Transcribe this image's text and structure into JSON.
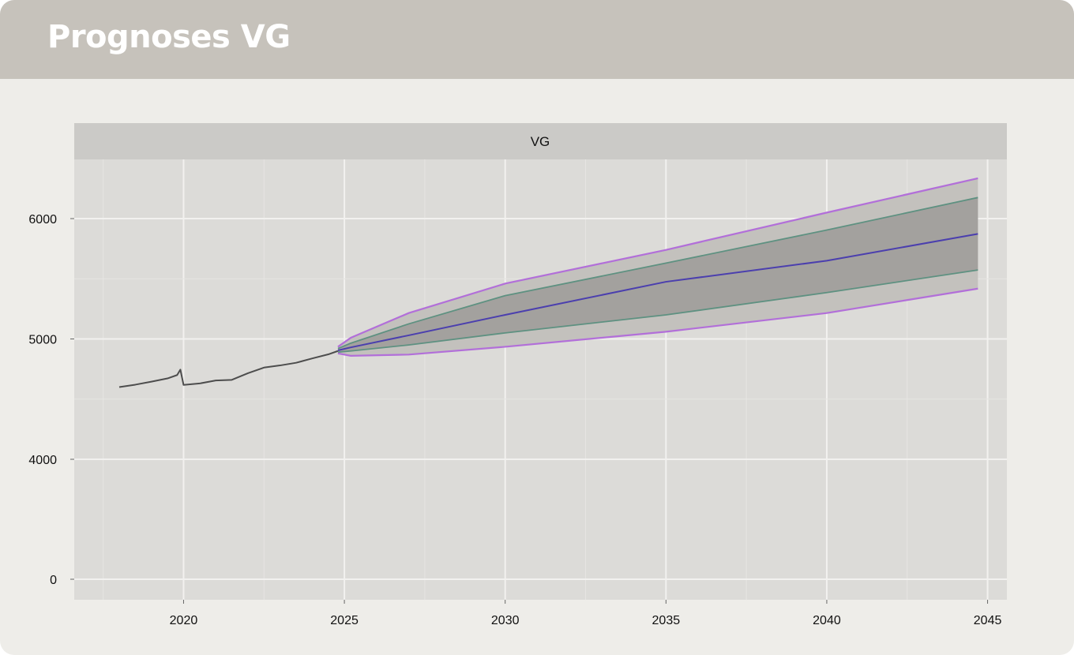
{
  "header": {
    "title": "Prognoses VG"
  },
  "chart_data": {
    "type": "line",
    "panel_label": "VG",
    "title": "",
    "xlabel": "",
    "ylabel": "",
    "xlim": [
      2016.6,
      2045.6
    ],
    "ylim": [
      -200,
      6500
    ],
    "x_ticks": [
      2020,
      2025,
      2030,
      2035,
      2040,
      2045
    ],
    "y_ticks": [
      0,
      4000,
      5000,
      6000
    ],
    "y_axis_break": "between 0 and 4000",
    "grid": true,
    "history": {
      "x": [
        2018.0,
        2018.5,
        2019.0,
        2019.5,
        2019.8,
        2019.9,
        2020.0,
        2020.5,
        2021.0,
        2021.5,
        2022.0,
        2022.5,
        2023.0,
        2023.5,
        2024.0,
        2024.5,
        2024.8
      ],
      "y": [
        4600,
        4620,
        4645,
        4672,
        4700,
        4745,
        4618,
        4630,
        4655,
        4660,
        4715,
        4762,
        4780,
        4802,
        4838,
        4872,
        4900
      ]
    },
    "forecast": {
      "x": [
        2024.8,
        2025.2,
        2027,
        2030,
        2035,
        2040,
        2044.7
      ],
      "mean": [
        4905,
        4930,
        5030,
        5200,
        5475,
        5650,
        5873
      ],
      "inner_lower": [
        4890,
        4900,
        4950,
        5050,
        5200,
        5385,
        5573
      ],
      "inner_upper": [
        4920,
        4965,
        5125,
        5360,
        5630,
        5905,
        6175
      ],
      "outer_lower": [
        4880,
        4860,
        4870,
        4935,
        5060,
        5215,
        5418
      ],
      "outer_upper": [
        4935,
        5010,
        5215,
        5460,
        5740,
        6050,
        6335
      ]
    },
    "colors": {
      "history": "#4d4d4d",
      "mean": "#4b3fae",
      "inner_band_fill": "#a3a19e",
      "inner_band_edge": "#5e9181",
      "outer_band_fill": "#c3c1bd",
      "outer_band_edge": "#b26fd9",
      "panel_background": "#dcdbd8",
      "strip_background": "#cbcac7"
    }
  }
}
